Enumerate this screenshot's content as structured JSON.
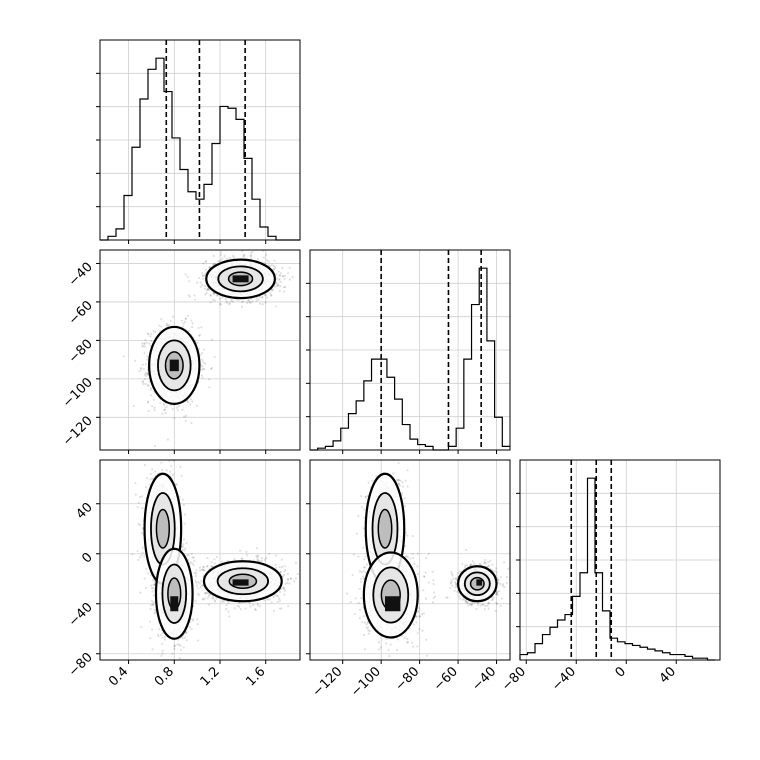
{
  "chart_data": {
    "type": "corner",
    "parameters": [
      {
        "id": "p0",
        "range": [
          0.15,
          1.9
        ],
        "ticks": [
          0.4,
          0.8,
          1.2,
          1.6
        ],
        "tick_labels": [
          "0.4",
          "0.8",
          "1.2",
          "1.6"
        ]
      },
      {
        "id": "p1",
        "range": [
          -137,
          -33
        ],
        "ticks": [
          -120,
          -100,
          -80,
          -60,
          -40
        ],
        "tick_labels": [
          "−120",
          "−100",
          "−80",
          "−60",
          "−40"
        ]
      },
      {
        "id": "p2",
        "range": [
          -85,
          75
        ],
        "ticks": [
          -80,
          -40,
          0,
          40
        ],
        "tick_labels": [
          "−80",
          "−40",
          "0",
          "40"
        ]
      }
    ],
    "histograms": [
      {
        "param": 0,
        "bin_edges": [
          0.15,
          0.22,
          0.29,
          0.36,
          0.43,
          0.5,
          0.57,
          0.64,
          0.71,
          0.78,
          0.85,
          0.92,
          0.99,
          1.06,
          1.13,
          1.2,
          1.27,
          1.34,
          1.41,
          1.48,
          1.55,
          1.62,
          1.69,
          1.76,
          1.83,
          1.9
        ],
        "counts": [
          0,
          2,
          6,
          24,
          50,
          76,
          92,
          98,
          80,
          55,
          38,
          26,
          22,
          30,
          52,
          72,
          71,
          65,
          44,
          22,
          7,
          2,
          0,
          0,
          0
        ],
        "quantiles": [
          0.73,
          1.02,
          1.42
        ]
      },
      {
        "param": 1,
        "bin_edges": [
          -137,
          -133,
          -129,
          -125,
          -121,
          -117,
          -113,
          -109,
          -105,
          -101,
          -97,
          -93,
          -89,
          -85,
          -81,
          -77,
          -73,
          -69,
          -65,
          -61,
          -57,
          -53,
          -49,
          -45,
          -41,
          -37,
          -33
        ],
        "counts": [
          0,
          1,
          2,
          5,
          12,
          20,
          27,
          38,
          50,
          50,
          40,
          28,
          14,
          6,
          3,
          2,
          0,
          0,
          2,
          12,
          50,
          80,
          100,
          60,
          18,
          2
        ],
        "quantiles": [
          -100,
          -65,
          -48
        ]
      },
      {
        "param": 2,
        "bin_edges": [
          -85,
          -79,
          -73,
          -67,
          -61,
          -55,
          -49,
          -43,
          -37,
          -31,
          -25,
          -19,
          -13,
          -7,
          -1,
          5,
          11,
          17,
          23,
          29,
          35,
          41,
          47,
          53,
          59,
          65,
          71
        ],
        "counts": [
          3,
          4,
          9,
          14,
          18,
          22,
          25,
          35,
          48,
          100,
          48,
          27,
          12,
          10,
          9,
          8,
          7,
          6,
          5,
          4,
          3,
          3,
          2,
          1,
          1,
          0
        ],
        "quantiles": [
          -44,
          -24,
          -12
        ]
      }
    ],
    "scatter_panels": [
      {
        "x_param": 0,
        "y_param": 1,
        "clusters": [
          {
            "mean": [
              0.8,
              -93
            ],
            "sd": [
              0.11,
              10
            ],
            "n": 1300
          },
          {
            "mean": [
              1.38,
              -48
            ],
            "sd": [
              0.15,
              5
            ],
            "n": 1300
          }
        ],
        "peak_cells": [
          {
            "center": [
              0.8,
              -93
            ],
            "size": [
              0.08,
              6
            ]
          },
          {
            "center": [
              1.38,
              -48
            ],
            "size": [
              0.14,
              3.6
            ]
          }
        ]
      },
      {
        "x_param": 0,
        "y_param": 2,
        "clusters": [
          {
            "mean": [
              0.7,
              20
            ],
            "sd": [
              0.08,
              22
            ],
            "n": 700
          },
          {
            "mean": [
              0.8,
              -32
            ],
            "sd": [
              0.08,
              18
            ],
            "n": 900
          },
          {
            "mean": [
              1.4,
              -22
            ],
            "sd": [
              0.17,
              8
            ],
            "n": 1200
          }
        ],
        "peak_cells": [
          {
            "center": [
              0.8,
              -40
            ],
            "size": [
              0.07,
              12
            ]
          },
          {
            "center": [
              1.38,
              -23
            ],
            "size": [
              0.14,
              5
            ]
          }
        ]
      },
      {
        "x_param": 1,
        "y_param": 2,
        "clusters": [
          {
            "mean": [
              -98,
              20
            ],
            "sd": [
              5,
              22
            ],
            "n": 700
          },
          {
            "mean": [
              -95,
              -33
            ],
            "sd": [
              7,
              17
            ],
            "n": 1000
          },
          {
            "mean": [
              -50,
              -24
            ],
            "sd": [
              5,
              7
            ],
            "n": 1200
          }
        ],
        "peak_cells": [
          {
            "center": [
              -94,
              -40
            ],
            "size": [
              8,
              12
            ]
          },
          {
            "center": [
              -49,
              -23
            ],
            "size": [
              3,
              5
            ]
          }
        ]
      }
    ],
    "grid": true,
    "legend": "none",
    "title": "",
    "xlabel": "",
    "ylabel": ""
  }
}
